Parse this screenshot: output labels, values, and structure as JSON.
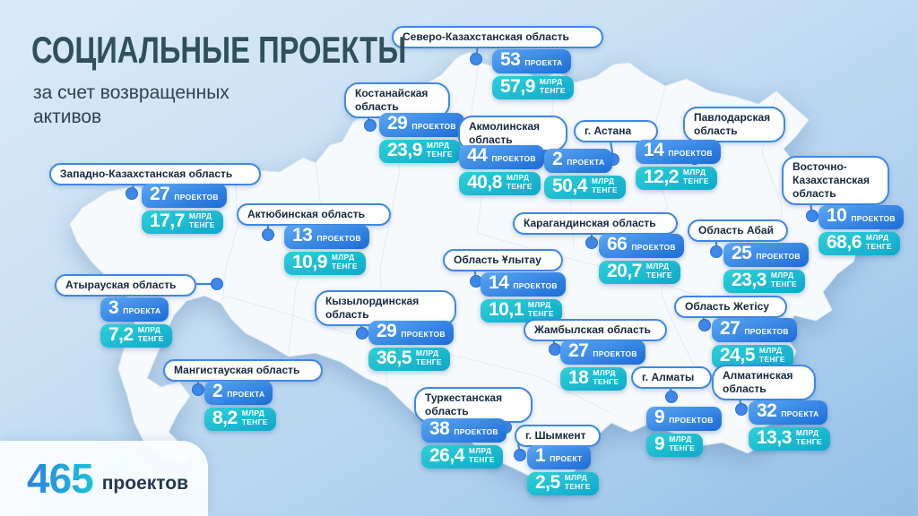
{
  "header": {
    "title": "СОЦИАЛЬНЫЕ ПРОЕКТЫ",
    "subtitle": "за счет возвращенных активов"
  },
  "total": {
    "value": "465",
    "label": "проектов"
  },
  "units": {
    "billion": "МЛРД",
    "currency": "ТЕНГЕ"
  },
  "colors": {
    "projects_badge": "#1c6cd7",
    "amount_badge": "#0fa8ca",
    "accent_blue": "#3e87e8",
    "title_text": "#30505b",
    "map_fill": "#f7fafd"
  },
  "regions": [
    {
      "name": "Северо-Казахстанская область",
      "projects": "53",
      "projects_word": "ПРОЕКТА",
      "amount": "57,9",
      "pos": {
        "label": [
          437,
          29,
          236
        ],
        "stats": [
          549,
          55
        ],
        "dot": [
          531,
          66
        ],
        "line": [
          533,
          50,
          531,
          66
        ]
      }
    },
    {
      "name": "Костанайская область",
      "projects": "29",
      "projects_word": "ПРОЕКТОВ",
      "amount": "23,9",
      "pos": {
        "label": [
          384,
          92,
          118
        ],
        "stats": [
          423,
          126
        ],
        "dot": [
          413,
          140
        ],
        "line": [
          410,
          128,
          413,
          140
        ]
      }
    },
    {
      "name": "Акмолинская область",
      "projects": "44",
      "projects_word": "ПРОЕКТОВ",
      "amount": "40,8",
      "pos": {
        "label": [
          511,
          129,
          122
        ],
        "stats": [
          512,
          162
        ],
        "dot": [
          603,
          169
        ],
        "line": [
          596,
          162,
          603,
          169
        ]
      }
    },
    {
      "name": "г. Астана",
      "projects": "2",
      "projects_word": "ПРОЕКТА",
      "amount": "50,4",
      "pos": {
        "label": [
          640,
          134,
          94
        ],
        "stats": [
          607,
          166
        ],
        "dot": [
          684,
          178
        ],
        "line": [
          681,
          157,
          684,
          177
        ]
      }
    },
    {
      "name": "Павлодарская область",
      "projects": "14",
      "projects_word": "ПРОЕКТОВ",
      "amount": "12,2",
      "pos": {
        "label": [
          762,
          119,
          114
        ],
        "stats": [
          709,
          156
        ],
        "dot": [
          775,
          177
        ],
        "line": [
          773,
          157,
          775,
          176
        ]
      }
    },
    {
      "name": "Западно-Казахстанская область",
      "projects": "27",
      "projects_word": "ПРОЕКТОВ",
      "amount": "17,7",
      "pos": {
        "label": [
          55,
          182,
          236
        ],
        "stats": [
          158,
          205
        ],
        "dot": [
          147,
          216
        ],
        "line": [
          149,
          205,
          147,
          216
        ]
      }
    },
    {
      "name": "Актюбинская область",
      "projects": "13",
      "projects_word": "ПРОЕКТОВ",
      "amount": "10,9",
      "pos": {
        "label": [
          264,
          227,
          172
        ],
        "stats": [
          317,
          251
        ],
        "dot": [
          299,
          262
        ],
        "line": [
          299,
          250,
          299,
          262
        ]
      }
    },
    {
      "name": "Карагандинская область",
      "projects": "66",
      "projects_word": "ПРОЕКТОВ",
      "amount": "20,7",
      "pos": {
        "label": [
          572,
          237,
          184
        ],
        "stats": [
          668,
          261
        ],
        "dot": [
          660,
          271
        ],
        "line": [
          660,
          258,
          660,
          271
        ]
      }
    },
    {
      "name": "Область Абай",
      "projects": "25",
      "projects_word": "ПРОЕКТОВ",
      "amount": "23,3",
      "pos": {
        "label": [
          767,
          245,
          112
        ],
        "stats": [
          807,
          271
        ],
        "dot": [
          799,
          281
        ],
        "line": [
          799,
          263,
          799,
          281
        ]
      }
    },
    {
      "name": "Восточно-Казахстанская область",
      "projects": "10",
      "projects_word": "ПРОЕКТОВ",
      "amount": "68,6",
      "pos": {
        "label": [
          872,
          174,
          120
        ],
        "stats": [
          913,
          229
        ],
        "dot": [
          906,
          241
        ],
        "line": [
          904,
          226,
          906,
          241
        ]
      }
    },
    {
      "name": "Атырауская область",
      "projects": "3",
      "projects_word": "ПРОЕКТА",
      "amount": "7,2",
      "pos": {
        "label": [
          61,
          306,
          158
        ],
        "stats": [
          112,
          332
        ],
        "dot": [
          242,
          317
        ],
        "line": [
          219,
          317,
          242,
          317
        ]
      }
    },
    {
      "name": "Область Ұлытау",
      "projects": "14",
      "projects_word": "ПРОЕКТОВ",
      "amount": "10,1",
      "pos": {
        "label": [
          494,
          278,
          134
        ],
        "stats": [
          536,
          304
        ],
        "dot": [
          531,
          314
        ],
        "line": [
          529,
          296,
          531,
          314
        ]
      }
    },
    {
      "name": "Кызылординская область",
      "projects": "29",
      "projects_word": "ПРОЕКТОВ",
      "amount": "36,5",
      "pos": {
        "label": [
          351,
          324,
          158
        ],
        "stats": [
          411,
          358
        ],
        "dot": [
          404,
          372
        ],
        "line": [
          402,
          355,
          404,
          372
        ]
      }
    },
    {
      "name": "Жамбылская область",
      "projects": "27",
      "projects_word": "ПРОЕКТОВ",
      "amount": "18",
      "pos": {
        "label": [
          584,
          356,
          160
        ],
        "stats": [
          625,
          380
        ],
        "dot": [
          619,
          390
        ],
        "line": [
          617,
          374,
          619,
          390
        ]
      }
    },
    {
      "name": "Область Жетісу",
      "projects": "27",
      "projects_word": "ПРОЕКТОВ",
      "amount": "24,5",
      "pos": {
        "label": [
          752,
          330,
          126
        ],
        "stats": [
          794,
          355
        ],
        "dot": [
          786,
          363
        ],
        "line": [
          784,
          348,
          786,
          363
        ]
      }
    },
    {
      "name": "Мангистауская область",
      "projects": "2",
      "projects_word": "ПРОЕКТА",
      "amount": "8,2",
      "pos": {
        "label": [
          182,
          401,
          178
        ],
        "stats": [
          228,
          425
        ],
        "dot": [
          221,
          435
        ],
        "line": [
          221,
          420,
          221,
          435
        ]
      }
    },
    {
      "name": "г. Алматы",
      "projects": "9",
      "projects_word": "ПРОЕКТОВ",
      "amount": "9",
      "pos": {
        "label": [
          704,
          409,
          90
        ],
        "stats": [
          721,
          454
        ],
        "dot": [
          749,
          443
        ],
        "line": [
          747,
          428,
          749,
          443
        ]
      }
    },
    {
      "name": "Алматинская область",
      "projects": "32",
      "projects_word": "ПРОЕКТА",
      "amount": "13,3",
      "pos": {
        "label": [
          794,
          407,
          116
        ],
        "stats": [
          835,
          447
        ],
        "dot": [
          827,
          457
        ],
        "line": [
          825,
          442,
          827,
          457
        ]
      }
    },
    {
      "name": "Туркестанская область",
      "projects": "38",
      "projects_word": "ПРОЕКТОВ",
      "amount": "26,4",
      "pos": {
        "label": [
          462,
          432,
          132
        ],
        "stats": [
          470,
          467
        ],
        "dot": [
          564,
          477
        ],
        "line": [
          560,
          462,
          564,
          476
        ]
      }
    },
    {
      "name": "г. Шымкент",
      "projects": "1",
      "projects_word": "ПРОЕКТ",
      "amount": "2,5",
      "pos": {
        "label": [
          574,
          474,
          96
        ],
        "stats": [
          588,
          497
        ],
        "dot": [
          580,
          508
        ],
        "line": [
          578,
          494,
          580,
          508
        ]
      }
    }
  ]
}
